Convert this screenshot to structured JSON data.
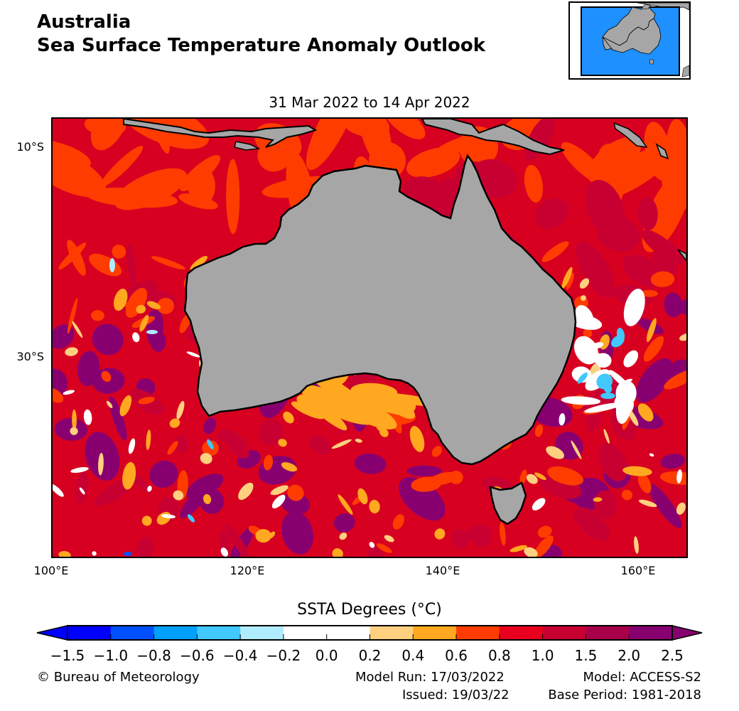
{
  "header": {
    "title_line1": "Australia",
    "title_line2": "Sea Surface Temperature Anomaly Outlook"
  },
  "period": "31 Mar 2022 to 14 Apr 2022",
  "map": {
    "lat_labels": [
      "10°S",
      "30°S"
    ],
    "lon_labels": [
      "100°E",
      "120°E",
      "140°E",
      "160°E"
    ],
    "land_color": "#a6a6a6",
    "ocean_inset_color": "#1e90ff"
  },
  "colorbar": {
    "title": "SSTA Degrees (°C)",
    "tick_labels": [
      "−1.5",
      "−1.0",
      "−0.8",
      "−0.6",
      "−0.4",
      "−0.2",
      "0.0",
      "0.2",
      "0.4",
      "0.6",
      "0.8",
      "1.0",
      "1.5",
      "2.0",
      "2.5"
    ],
    "colors": [
      "#0000ff",
      "#0050ff",
      "#00a0ff",
      "#40c8ff",
      "#b0ecff",
      "#ffffff",
      "#ffffff",
      "#ffd080",
      "#ffa820",
      "#ff3c00",
      "#e8001e",
      "#c80032",
      "#a8004a",
      "#880070"
    ]
  },
  "footer": {
    "copyright": "© Bureau of Meteorology",
    "model_run": "Model Run: 17/03/2022",
    "issued": "Issued: 19/03/22",
    "model": "Model: ACCESS-S2",
    "base_period": "Base Period: 1981-2018"
  }
}
